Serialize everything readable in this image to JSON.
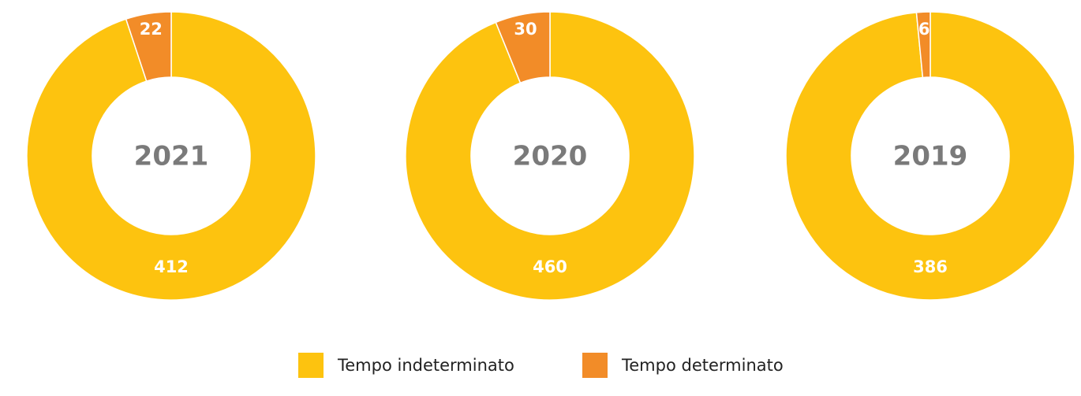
{
  "legend": {
    "names": [
      "Tempo indeterminato",
      "Tempo determinato"
    ],
    "colors": [
      "#fdc30f",
      "#f28c28"
    ]
  },
  "chart_data": [
    {
      "type": "donut",
      "title": "2021",
      "values": [
        412,
        22
      ]
    },
    {
      "type": "donut",
      "title": "2020",
      "values": [
        460,
        30
      ]
    },
    {
      "type": "donut",
      "title": "2019",
      "values": [
        386,
        6
      ]
    }
  ]
}
